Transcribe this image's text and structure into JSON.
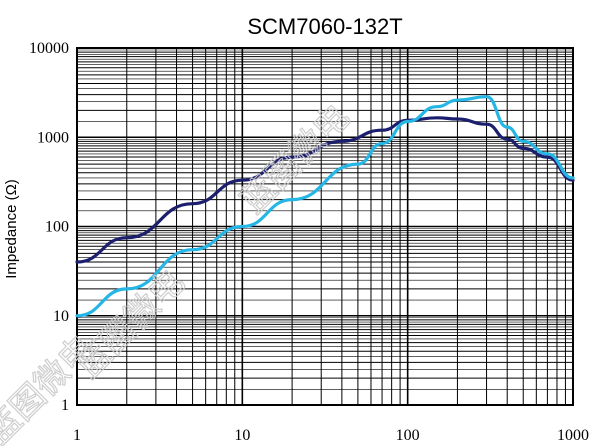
{
  "chart_data": {
    "type": "line",
    "title": "SCM7060-132T",
    "xlabel": "",
    "ylabel": "Impedance (Ω)",
    "xscale": "log",
    "yscale": "log",
    "xlim": [
      1,
      1000
    ],
    "ylim": [
      1,
      10000
    ],
    "x_ticks": [
      "1",
      "10",
      "100",
      "1000"
    ],
    "y_ticks": [
      "1",
      "10",
      "100",
      "1000",
      "10000"
    ],
    "grid": true,
    "legend": "none",
    "series": [
      {
        "color": "#1c1f6e",
        "x": [
          1,
          2,
          5,
          10,
          20,
          40,
          70,
          100,
          150,
          200,
          300,
          400,
          500,
          700,
          1000
        ],
        "y": [
          40,
          75,
          180,
          330,
          600,
          900,
          1200,
          1550,
          1650,
          1600,
          1400,
          950,
          750,
          600,
          330
        ]
      },
      {
        "color": "#26b6e6",
        "x": [
          1,
          2,
          5,
          10,
          20,
          50,
          70,
          100,
          150,
          200,
          300,
          400,
          500,
          700,
          1000
        ],
        "y": [
          10,
          20,
          55,
          100,
          200,
          500,
          850,
          1500,
          2200,
          2600,
          2850,
          1300,
          900,
          650,
          350
        ]
      }
    ]
  },
  "watermarks": [
    "蓝图微电",
    "蓝图微电",
    "蓝图微电"
  ]
}
